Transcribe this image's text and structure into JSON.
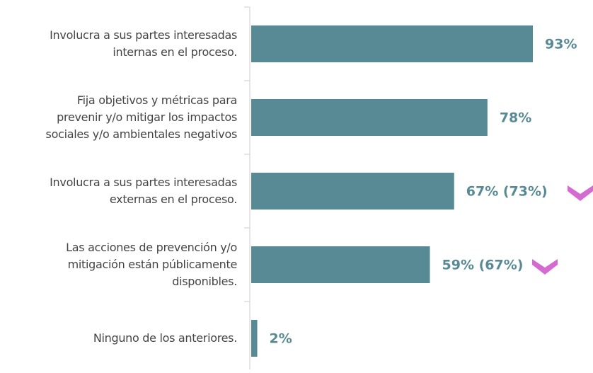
{
  "chart_data": {
    "type": "bar",
    "orientation": "horizontal",
    "categories": [
      "Involucra a sus partes interesadas\ninternas en el proceso.",
      "Fija objetivos y métricas para\nprevenir y/o mitigar los impactos\nsociales y/o ambientales negativos",
      "Involucra a sus partes interesadas\nexternas en el proceso.",
      "Las acciones de prevención y/o\nmitigación están públicamente\ndisponibles.",
      "Ninguno de los anteriores."
    ],
    "values": [
      93,
      78,
      67,
      59,
      2
    ],
    "value_labels": [
      "93%",
      "78%",
      "67% (73%)",
      "59% (67%)",
      "2%"
    ],
    "color": "#588a96",
    "xlim": [
      0,
      100
    ]
  }
}
